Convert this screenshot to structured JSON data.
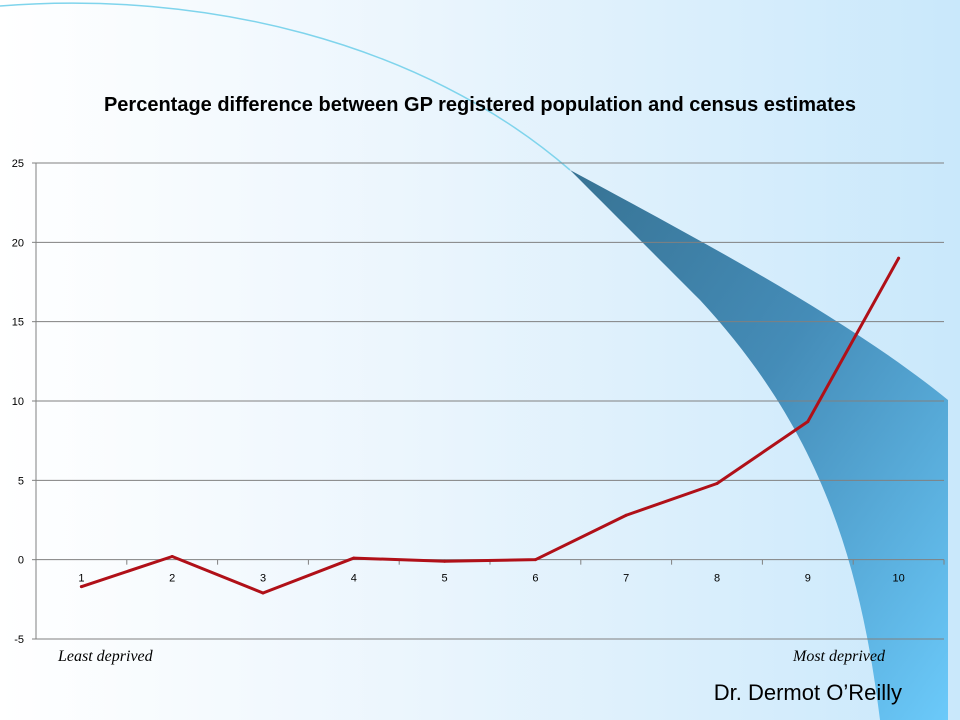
{
  "slide": {
    "x_note_left": "Least deprived",
    "x_note_right": "Most deprived",
    "author": "Dr. Dermot O’Reilly"
  },
  "colors": {
    "line": "#b01018",
    "grid": "#808080",
    "swoosh_dark": "#2e6c8e",
    "swoosh_light": "#66c8fa"
  },
  "chart_data": {
    "type": "line",
    "title": "Percentage difference between GP registered population and census estimates",
    "xlabel": "",
    "ylabel": "",
    "categories": [
      "1",
      "2",
      "3",
      "4",
      "5",
      "6",
      "7",
      "8",
      "9",
      "10"
    ],
    "series": [
      {
        "values": [
          -1.7,
          0.2,
          -2.1,
          0.1,
          -0.1,
          0.0,
          2.8,
          4.8,
          8.7,
          19.0
        ]
      }
    ],
    "ylim": [
      -5,
      25
    ],
    "yticks": [
      -5,
      0,
      5,
      10,
      15,
      20,
      25
    ],
    "grid": true,
    "legend": "none"
  }
}
